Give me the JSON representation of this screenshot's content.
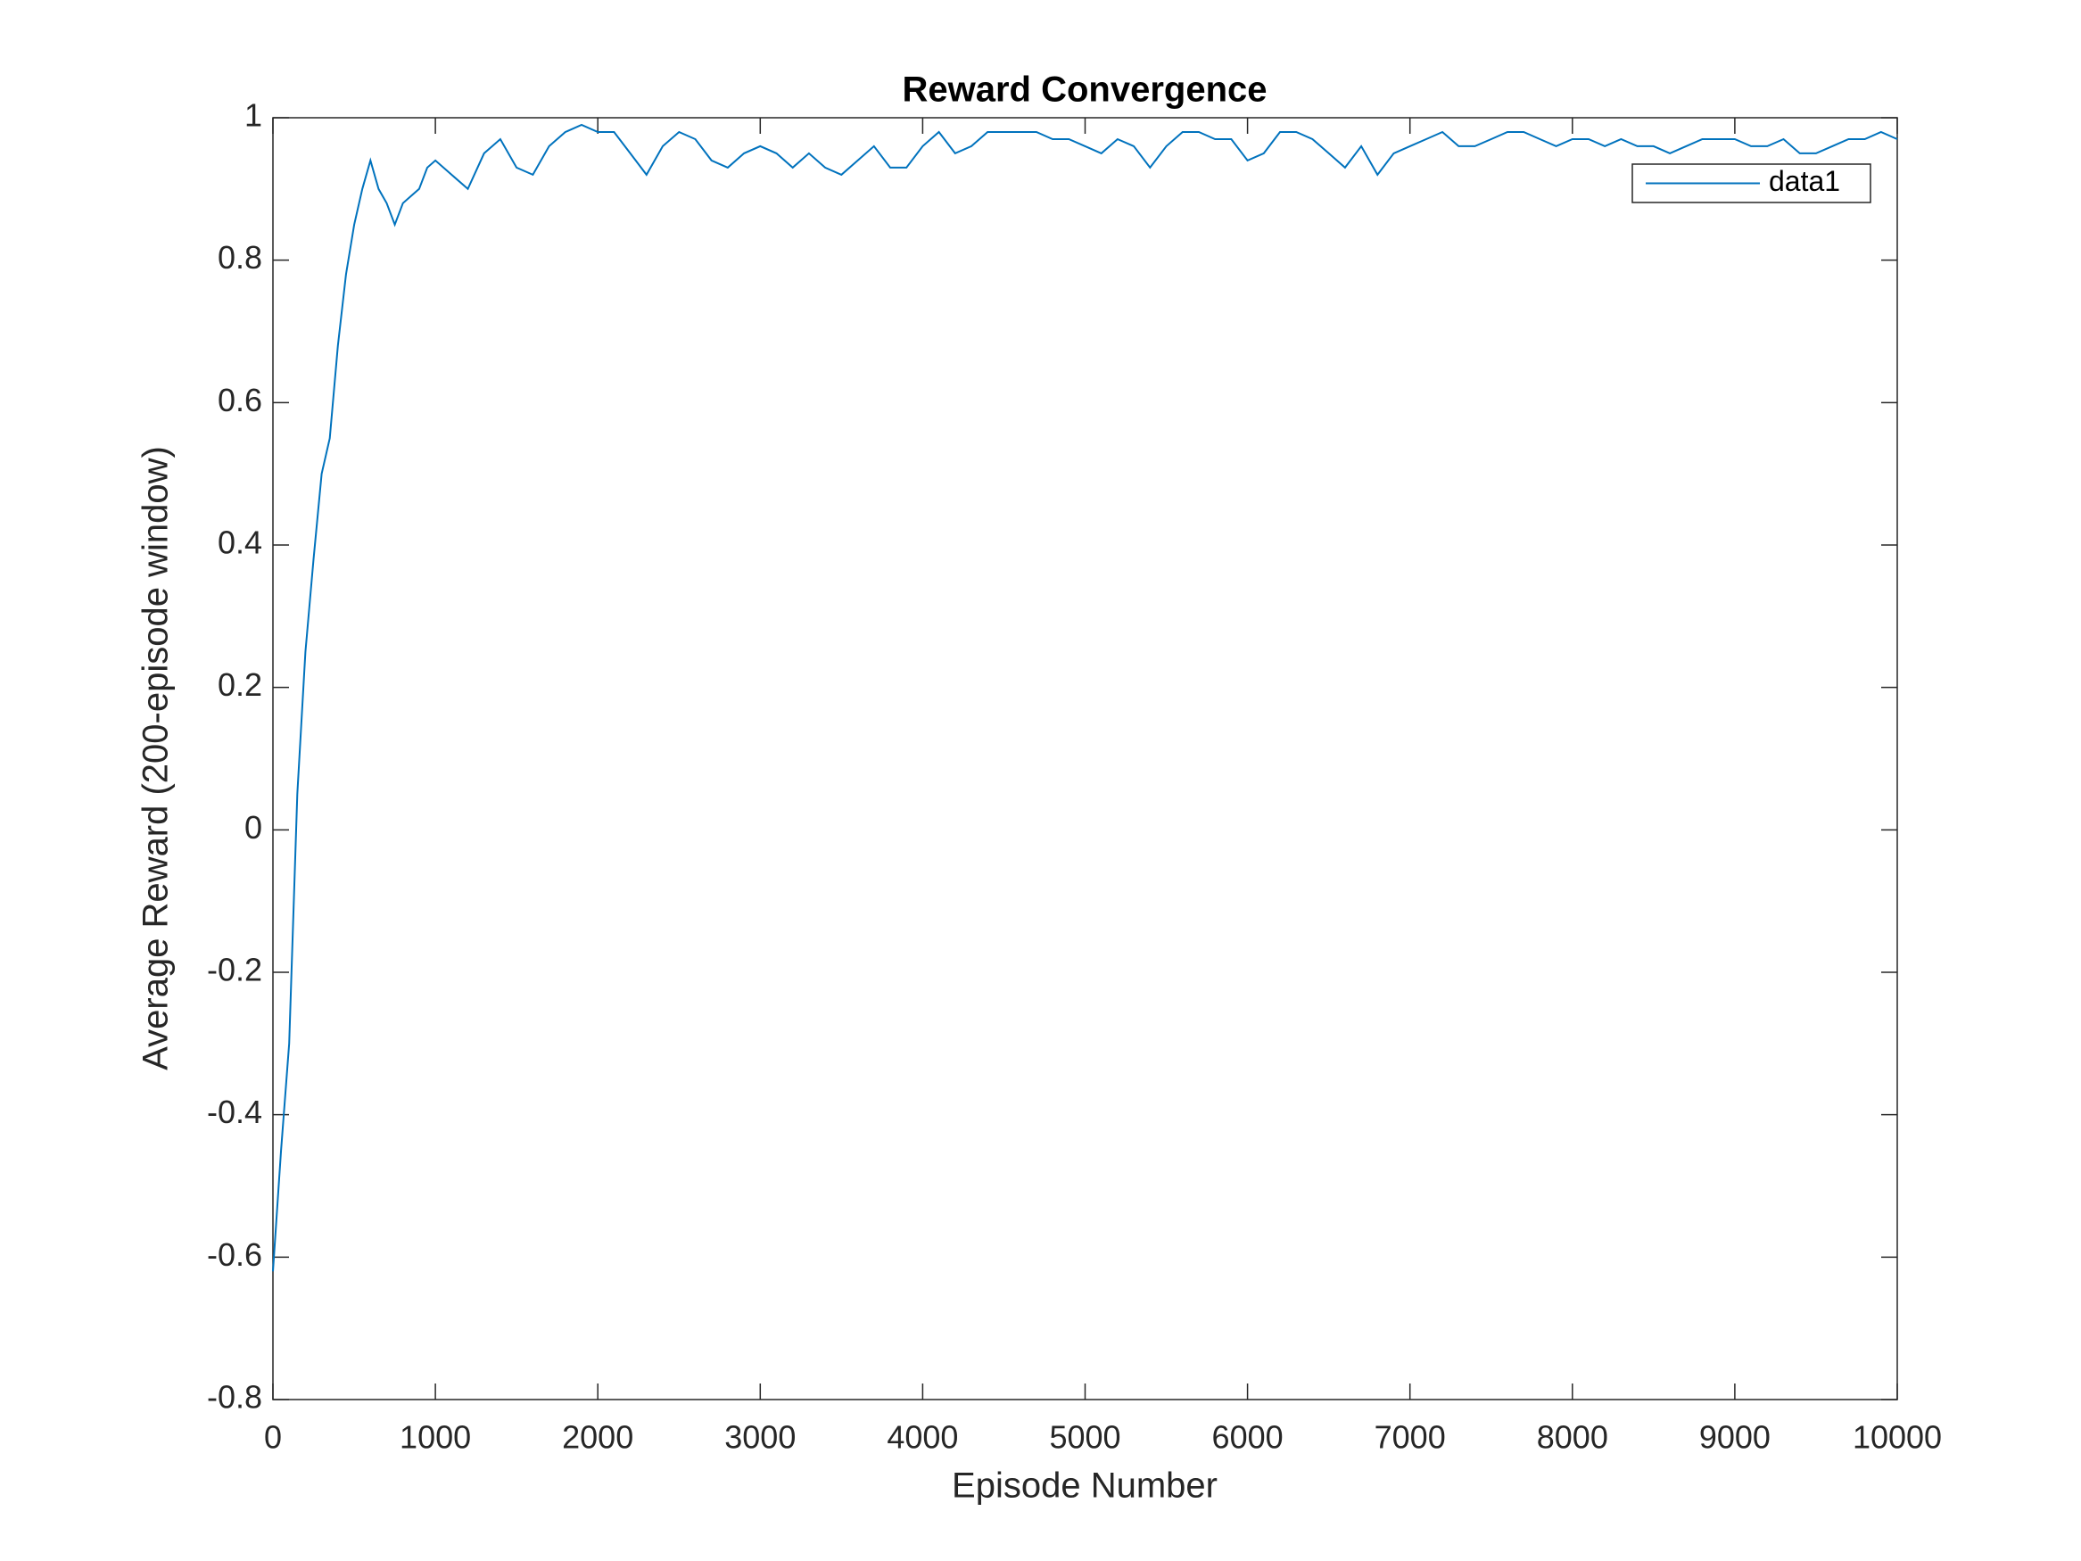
{
  "chart_data": {
    "type": "line",
    "title": "Reward Convergence",
    "x_label": "Episode Number",
    "y_label": "Average Reward (200-episode window)",
    "x": [
      0,
      50,
      100,
      150,
      200,
      250,
      300,
      350,
      400,
      450,
      500,
      550,
      600,
      650,
      700,
      750,
      800,
      850,
      900,
      950,
      1000,
      1100,
      1200,
      1300,
      1400,
      1500,
      1600,
      1700,
      1800,
      1900,
      2000,
      2100,
      2200,
      2300,
      2400,
      2500,
      2600,
      2700,
      2800,
      2900,
      3000,
      3100,
      3200,
      3300,
      3400,
      3500,
      3600,
      3700,
      3800,
      3900,
      4000,
      4100,
      4200,
      4300,
      4400,
      4500,
      4600,
      4700,
      4800,
      4900,
      5000,
      5100,
      5200,
      5300,
      5400,
      5500,
      5600,
      5700,
      5800,
      5900,
      6000,
      6100,
      6200,
      6300,
      6400,
      6500,
      6600,
      6700,
      6800,
      6900,
      7000,
      7100,
      7200,
      7300,
      7400,
      7500,
      7600,
      7700,
      7800,
      7900,
      8000,
      8100,
      8200,
      8300,
      8400,
      8500,
      8600,
      8700,
      8800,
      8900,
      9000,
      9100,
      9200,
      9300,
      9400,
      9500,
      9600,
      9700,
      9800,
      9900,
      10000
    ],
    "series": [
      {
        "name": "data1",
        "color": "#0072bd",
        "values": [
          -0.62,
          -0.45,
          -0.3,
          0.05,
          0.25,
          0.38,
          0.5,
          0.55,
          0.68,
          0.78,
          0.85,
          0.9,
          0.94,
          0.9,
          0.88,
          0.85,
          0.88,
          0.89,
          0.9,
          0.93,
          0.94,
          0.92,
          0.9,
          0.95,
          0.97,
          0.93,
          0.92,
          0.96,
          0.98,
          0.99,
          0.98,
          0.98,
          0.95,
          0.92,
          0.96,
          0.98,
          0.97,
          0.94,
          0.93,
          0.95,
          0.96,
          0.95,
          0.93,
          0.95,
          0.93,
          0.92,
          0.94,
          0.96,
          0.93,
          0.93,
          0.96,
          0.98,
          0.95,
          0.96,
          0.98,
          0.98,
          0.98,
          0.98,
          0.97,
          0.97,
          0.96,
          0.95,
          0.97,
          0.96,
          0.93,
          0.96,
          0.98,
          0.98,
          0.97,
          0.97,
          0.94,
          0.95,
          0.98,
          0.98,
          0.97,
          0.95,
          0.93,
          0.96,
          0.92,
          0.95,
          0.96,
          0.97,
          0.98,
          0.96,
          0.96,
          0.97,
          0.98,
          0.98,
          0.97,
          0.96,
          0.97,
          0.97,
          0.96,
          0.97,
          0.96,
          0.96,
          0.95,
          0.96,
          0.97,
          0.97,
          0.97,
          0.96,
          0.96,
          0.97,
          0.95,
          0.95,
          0.96,
          0.97,
          0.97,
          0.98,
          0.97
        ]
      }
    ],
    "xlim": [
      0,
      10000
    ],
    "xticks": [
      0,
      1000,
      2000,
      3000,
      4000,
      5000,
      6000,
      7000,
      8000,
      9000,
      10000
    ],
    "ylim": [
      -0.8,
      1
    ],
    "yticks": [
      -0.8,
      -0.6,
      -0.4,
      -0.2,
      0,
      0.2,
      0.4,
      0.6,
      0.8,
      1
    ],
    "legend": "upper right"
  }
}
